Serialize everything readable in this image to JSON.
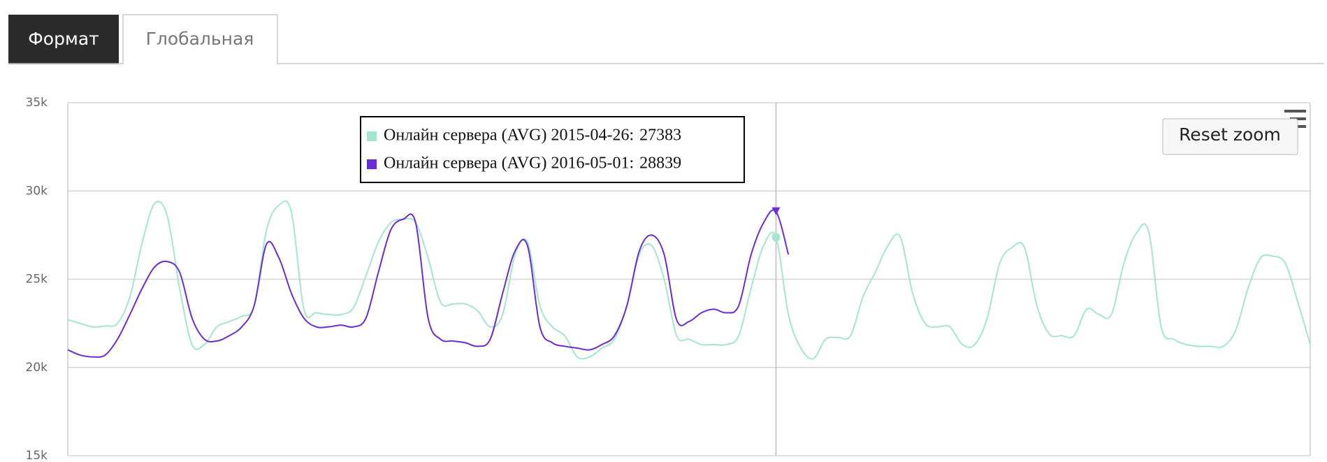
{
  "tabs": [
    "Формат",
    "Глобальная"
  ],
  "reset_button": "Reset zoom",
  "chart_data": {
    "type": "line",
    "ylim": [
      15000,
      35000
    ],
    "yticks": [
      {
        "value": 15000,
        "label": "15k"
      },
      {
        "value": 20000,
        "label": "20k"
      },
      {
        "value": 25000,
        "label": "25k"
      },
      {
        "value": 30000,
        "label": "30k"
      },
      {
        "value": 35000,
        "label": "35k"
      }
    ],
    "grid": true,
    "categories": [
      null,
      null,
      null,
      null,
      null,
      null,
      null,
      null,
      null,
      null,
      null,
      null,
      null,
      null,
      null,
      null,
      null,
      null,
      null,
      null,
      null,
      null,
      null,
      null,
      null,
      null,
      null,
      null,
      null,
      null,
      null,
      null,
      null,
      null,
      null,
      null,
      null,
      null,
      null,
      null,
      null,
      null,
      null,
      null,
      null,
      null,
      null,
      null,
      null,
      null,
      null,
      null,
      null,
      null,
      null,
      null,
      null,
      null,
      null,
      null,
      null,
      null,
      null,
      null,
      null,
      null,
      null,
      null,
      null,
      null,
      null,
      null,
      null,
      null,
      null,
      null,
      null,
      null,
      null,
      null,
      null,
      null,
      null,
      null,
      null,
      null,
      null,
      null,
      null,
      null,
      null,
      null,
      null,
      null,
      null,
      null,
      null,
      null,
      null,
      null,
      null
    ],
    "series": [
      {
        "color": "#a3e6cd",
        "values": [
          22700,
          22500,
          22300,
          22350,
          22500,
          24000,
          27100,
          29300,
          28600,
          24500,
          21300,
          21300,
          22300,
          22600,
          22900,
          23500,
          27800,
          29200,
          28800,
          23300,
          23100,
          23000,
          23000,
          23400,
          25200,
          27100,
          28200,
          28400,
          28200,
          26200,
          23700,
          23600,
          23600,
          23200,
          22300,
          23000,
          26400,
          27100,
          23500,
          22300,
          21800,
          20600,
          20600,
          21100,
          21600,
          23500,
          26400,
          26900,
          25000,
          21800,
          21600,
          21300,
          21300,
          21300,
          21800,
          24500,
          26900,
          27383,
          23000,
          21100,
          20500,
          21600,
          21700,
          21800,
          24000,
          25400,
          26900,
          27400,
          24200,
          22500,
          22300,
          22300,
          21300,
          21300,
          22800,
          25900,
          26800,
          26800,
          23500,
          21900,
          21800,
          21800,
          23300,
          23000,
          23000,
          25900,
          27600,
          27700,
          22300,
          21600,
          21300,
          21200,
          21200,
          21200,
          22100,
          24500,
          26200,
          26300,
          25900,
          23700,
          21300
        ]
      },
      {
        "color": "#6a2bd9",
        "values": [
          21000,
          20700,
          20600,
          20700,
          21600,
          23000,
          24500,
          25700,
          26000,
          25400,
          22800,
          21600,
          21500,
          21800,
          22300,
          23500,
          27000,
          26200,
          24200,
          22800,
          22300,
          22300,
          22400,
          22300,
          22800,
          25400,
          27800,
          28400,
          28200,
          22800,
          21600,
          21500,
          21400,
          21200,
          21600,
          24200,
          26600,
          26900,
          22300,
          21400,
          21200,
          21100,
          21000,
          21300,
          21800,
          23500,
          26600,
          27500,
          26400,
          22700,
          22600,
          23100,
          23300,
          23100,
          23500,
          26400,
          28200,
          28839,
          26400,
          null,
          null,
          null,
          null,
          null,
          null,
          null,
          null,
          null,
          null,
          null,
          null,
          null,
          null,
          null,
          null,
          null,
          null,
          null,
          null,
          null,
          null,
          null,
          null,
          null,
          null,
          null,
          null,
          null,
          null,
          null,
          null,
          null,
          null,
          null,
          null,
          null,
          null,
          null,
          null,
          null,
          null
        ]
      }
    ],
    "tooltip": {
      "index": 57,
      "items": [
        {
          "text": "Онлайн сервера (AVG) 2015-04-26:",
          "value": 27383
        },
        {
          "text": "Онлайн сервера (AVG) 2016-05-01:",
          "value": 28839
        }
      ]
    }
  }
}
